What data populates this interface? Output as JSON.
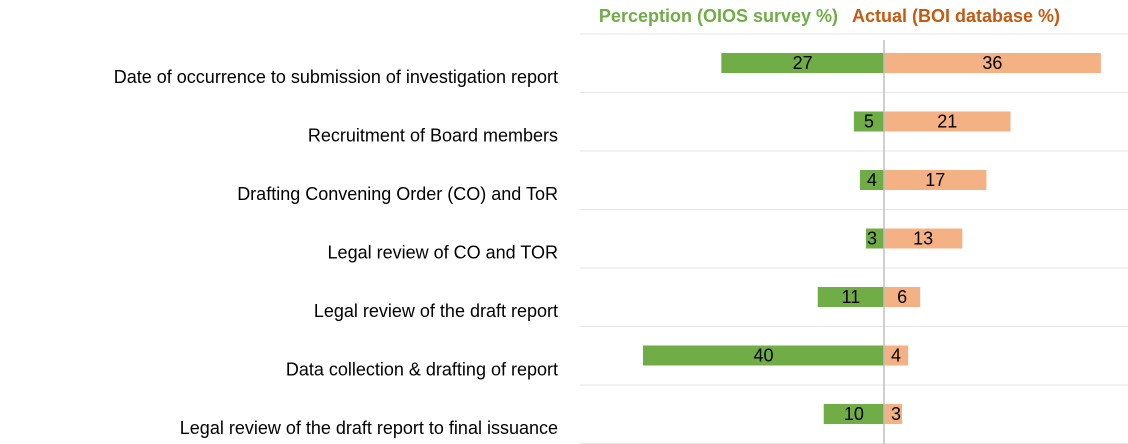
{
  "chart_data": {
    "type": "diverging-bar",
    "categories": [
      "Date of occurrence to submission of investigation report",
      "Recruitment of Board members",
      "Drafting Convening Order (CO) and ToR",
      "Legal review of CO and TOR",
      "Legal review of the draft report",
      "Data collection & drafting of report",
      "Legal review of the draft report to final issuance"
    ],
    "series": [
      {
        "name": "Perception (OIOS survey %)",
        "color": "#70ad47",
        "values": [
          27,
          5,
          4,
          3,
          11,
          40,
          10
        ]
      },
      {
        "name": "Actual (BOI database %)",
        "color": "#f4b183",
        "values": [
          36,
          21,
          17,
          13,
          6,
          4,
          3
        ]
      }
    ],
    "grid": true
  }
}
